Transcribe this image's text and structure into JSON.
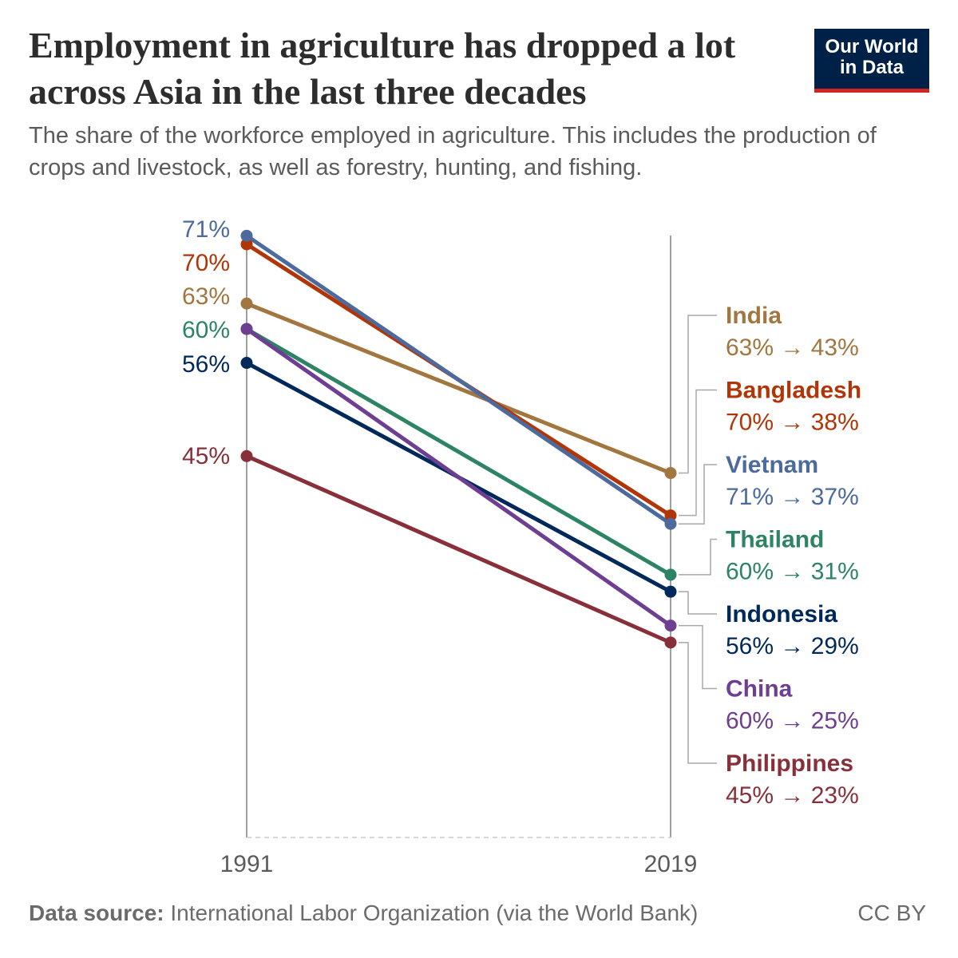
{
  "header": {
    "title": "Employment in agriculture has dropped a lot across Asia in the last three decades",
    "subtitle": "The share of the workforce employed in agriculture. This includes the production of crops and livestock, as well as forestry, hunting, and fishing.",
    "logo_line1": "Our World",
    "logo_line2": "in Data"
  },
  "footer": {
    "source_label": "Data source:",
    "source_text": "International Labor Organization (via the World Bank)",
    "license": "CC BY"
  },
  "chart_data": {
    "type": "line",
    "subtype": "slope",
    "x": [
      "1991",
      "2019"
    ],
    "ylim": [
      0,
      71
    ],
    "grid": false,
    "legend": "right (inline labels)",
    "series": [
      {
        "name": "India",
        "values": [
          63,
          43
        ],
        "color": "#a2773f",
        "label": "63% → 43%",
        "left_label": "63%"
      },
      {
        "name": "Bangladesh",
        "values": [
          70,
          38
        ],
        "color": "#b13507",
        "label": "70% → 38%",
        "left_label": "70%"
      },
      {
        "name": "Vietnam",
        "values": [
          71,
          37
        ],
        "color": "#4c6a9c",
        "label": "71% → 37%",
        "left_label": "71%"
      },
      {
        "name": "Thailand",
        "values": [
          60,
          31
        ],
        "color": "#2c8465",
        "label": "60% → 31%",
        "left_label": "60%"
      },
      {
        "name": "Indonesia",
        "values": [
          56,
          29
        ],
        "color": "#00295b",
        "label": "56% → 29%",
        "left_label": "56%"
      },
      {
        "name": "China",
        "values": [
          60,
          25
        ],
        "color": "#6d3e91",
        "label": "60% → 25%",
        "left_label": ""
      },
      {
        "name": "Philippines",
        "values": [
          45,
          23
        ],
        "color": "#883039",
        "label": "45% → 23%",
        "left_label": "45%"
      }
    ]
  }
}
